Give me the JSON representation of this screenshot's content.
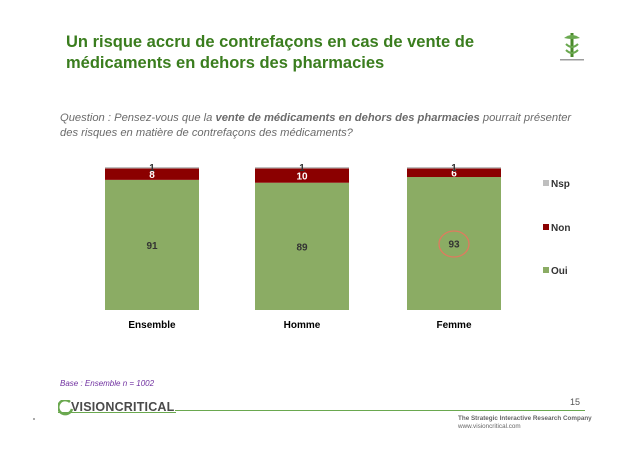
{
  "slide": {
    "title": "Un risque accru de contrefaçons en cas de vente de médicaments en dehors des pharmacies",
    "question_prefix": "Question : Pensez-vous que la ",
    "question_bold": "vente de médicaments en dehors des pharmacies",
    "question_suffix": " pourrait présenter des risques en matière de contrefaçons des médicaments?",
    "base_label": "Base :  Ensemble n = 1002",
    "page_number": "15",
    "brand_name": "VISIONCRITICAL",
    "tagline": "The Strategic Interactive Research Company",
    "tagline_url": "www.visioncritical.com"
  },
  "colors": {
    "title": "#3a7d1e",
    "oui": "#8bac64",
    "non": "#8b0000",
    "nsp": "#bfbfbf",
    "highlight_circle": "#e07a5f"
  },
  "chart_data": {
    "type": "bar",
    "stacked": true,
    "categories": [
      "Ensemble",
      "Homme",
      "Femme"
    ],
    "series": [
      {
        "name": "Oui",
        "values": [
          91,
          89,
          93
        ]
      },
      {
        "name": "Non",
        "values": [
          8,
          10,
          6
        ]
      },
      {
        "name": "Nsp",
        "values": [
          1,
          1,
          1
        ]
      }
    ],
    "ylim": [
      0,
      100
    ],
    "legend_position": "right",
    "highlight": {
      "category": "Femme",
      "series": "Oui"
    },
    "title": "",
    "xlabel": "",
    "ylabel": ""
  }
}
